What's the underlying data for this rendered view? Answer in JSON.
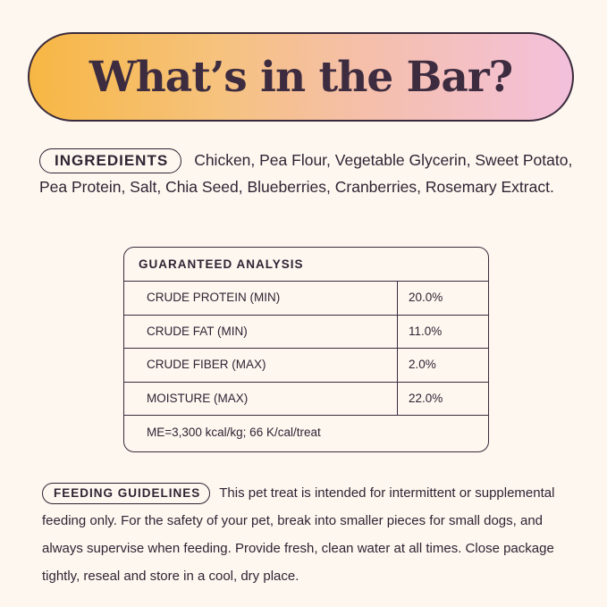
{
  "title": "What’s in the Bar?",
  "colors": {
    "gradient_start": "#f7b744",
    "gradient_end": "#f3c0dc",
    "text": "#2f2433",
    "background": "#fdf7f0"
  },
  "ingredients": {
    "label": "INGREDIENTS",
    "text": "Chicken, Pea Flour, Vegetable Glycerin, Sweet Potato, Pea Protein, Salt, Chia Seed, Blueberries, Cranberries, Rosemary Extract."
  },
  "analysis": {
    "heading": "GUARANTEED ANALYSIS",
    "rows": [
      {
        "name": "CRUDE PROTEIN (MIN)",
        "value": "20.0%"
      },
      {
        "name": "CRUDE FAT (MIN)",
        "value": "11.0%"
      },
      {
        "name": "CRUDE FIBER (MAX)",
        "value": "2.0%"
      },
      {
        "name": "MOISTURE (MAX)",
        "value": "22.0%"
      }
    ],
    "footer": "ME=3,300 kcal/kg; 66 K/cal/treat"
  },
  "feeding": {
    "label": "FEEDING GUIDELINES",
    "text": "This pet treat is intended for intermittent or supplemental feeding only. For the safety of your pet, break into smaller pieces for small dogs, and always supervise when feeding. Provide fresh, clean water at all times. Close package tightly, reseal and store in a cool, dry place."
  }
}
